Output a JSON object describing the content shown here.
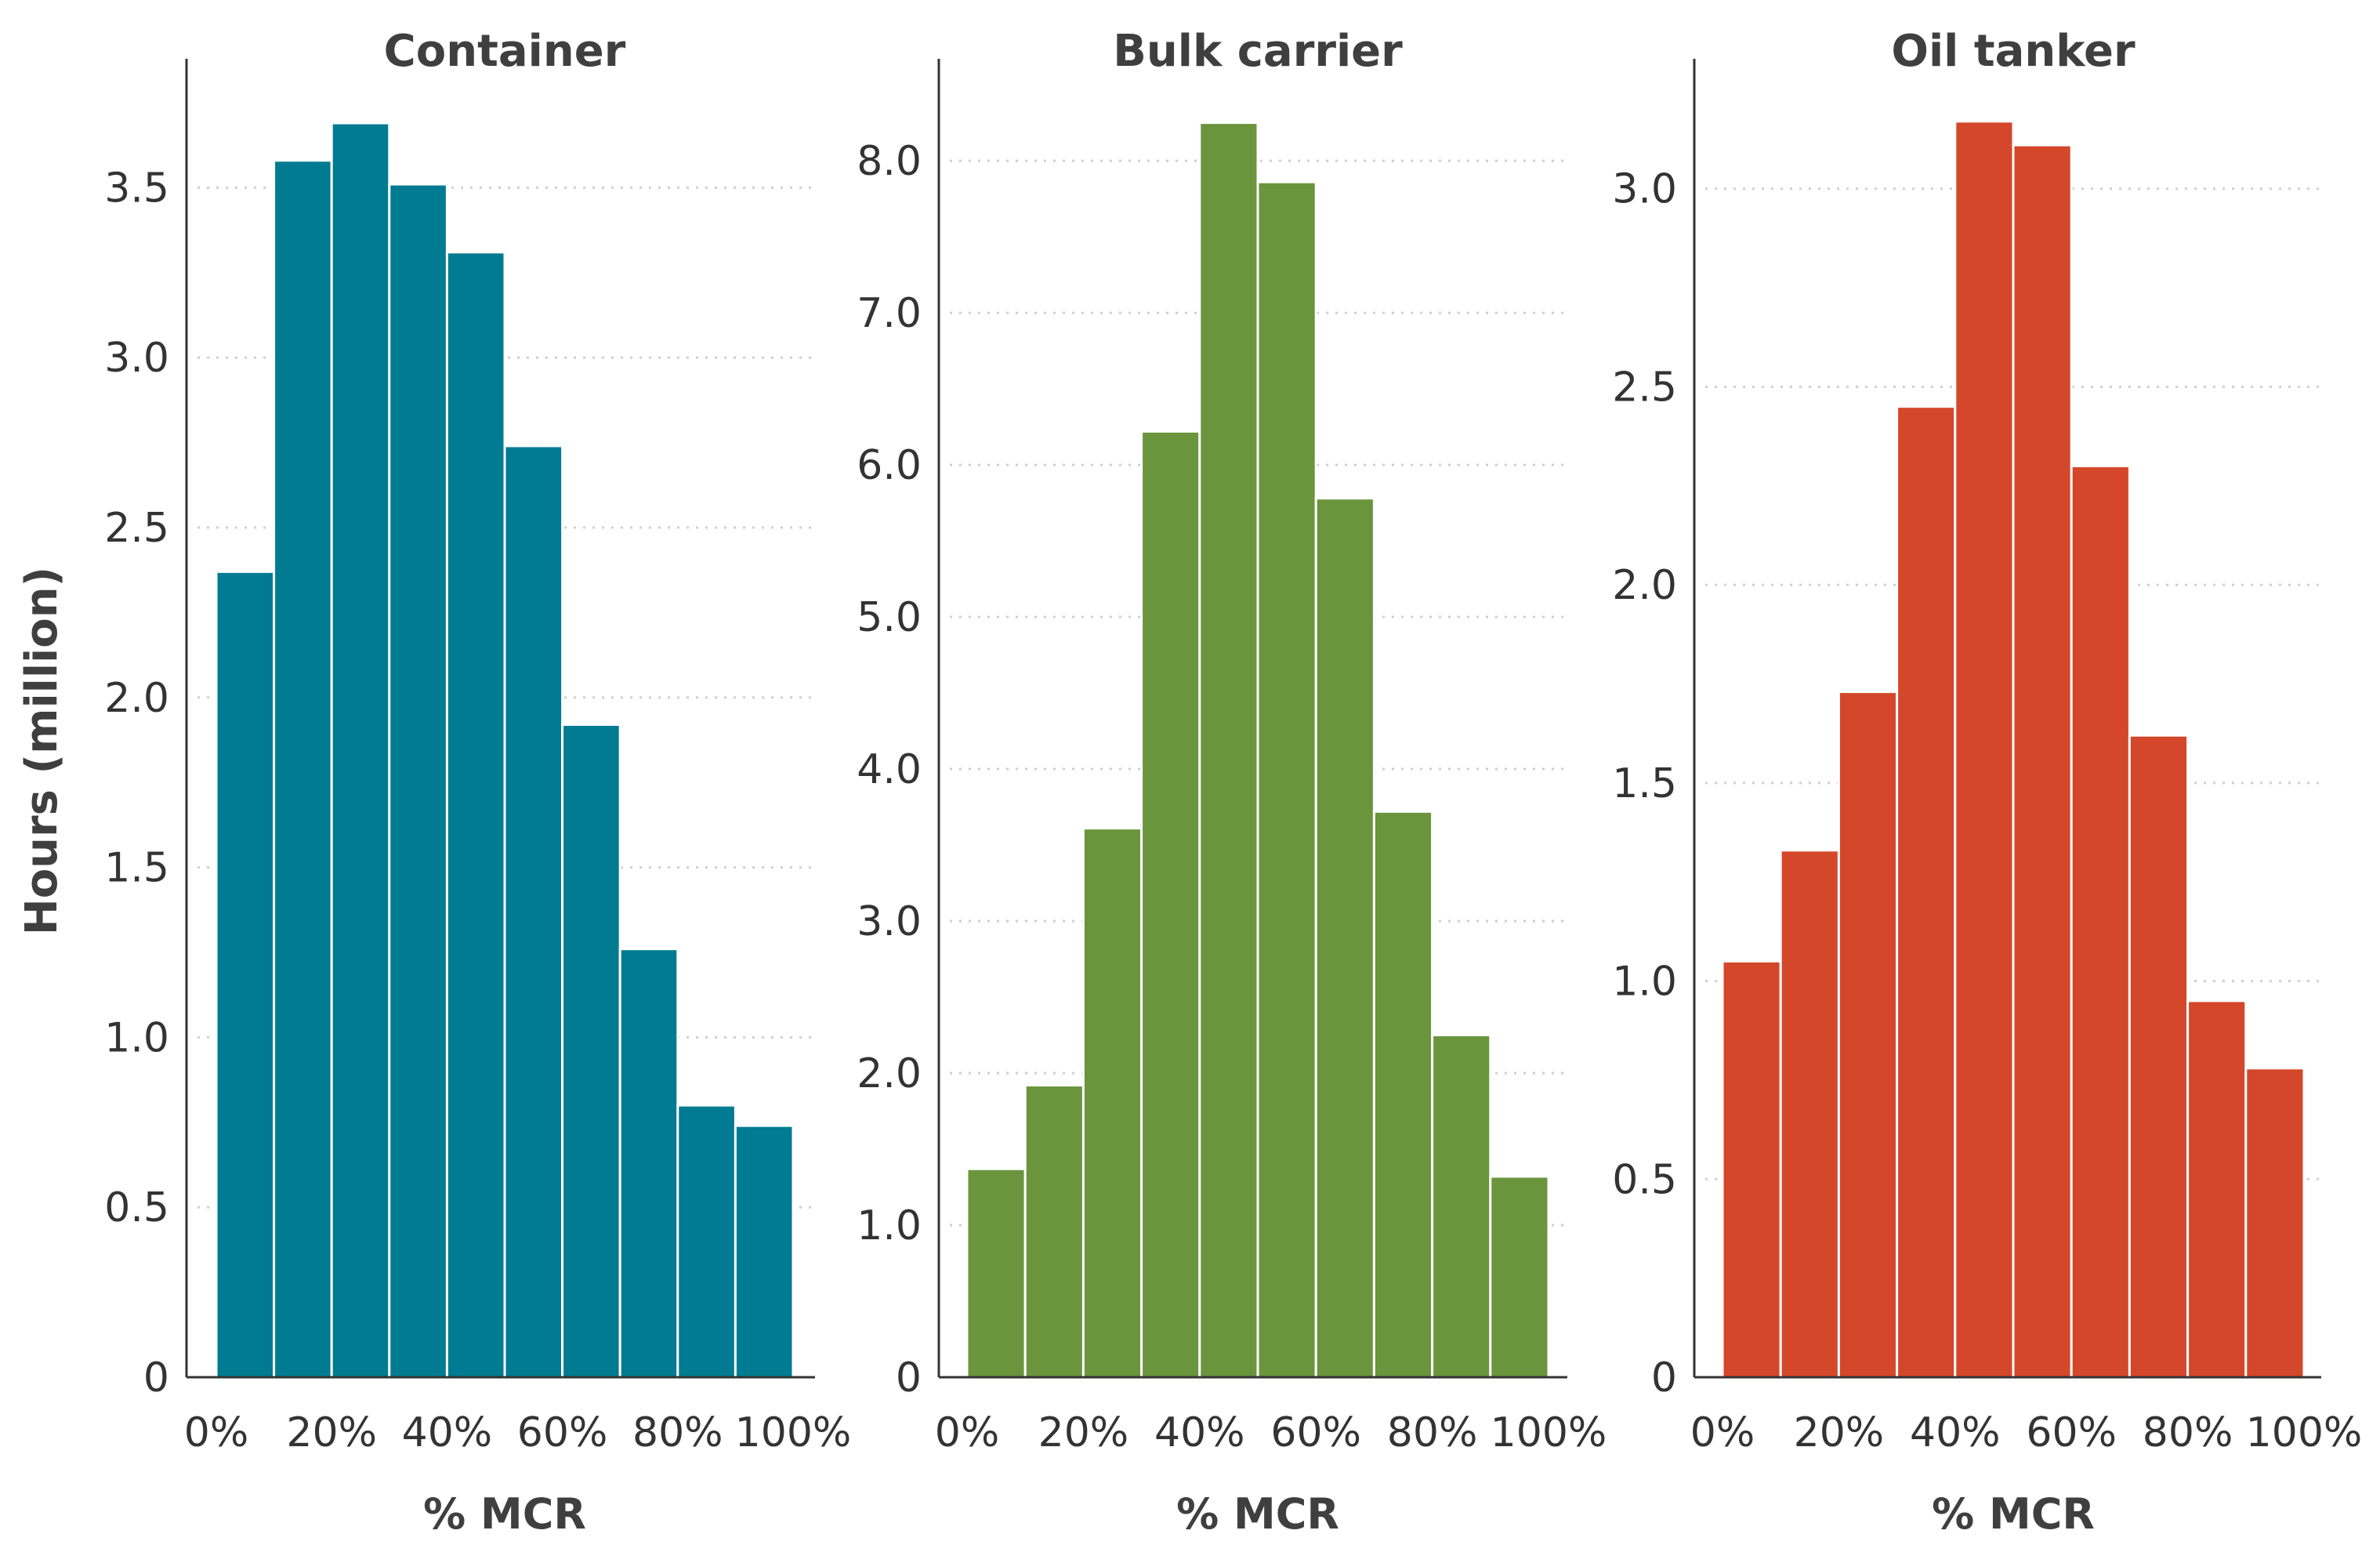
{
  "chart_data": [
    {
      "type": "bar",
      "title": "Container",
      "xlabel": "% MCR",
      "ylabel": "Hours (million)",
      "categories": [
        "0-10%",
        "10-20%",
        "20-30%",
        "30-40%",
        "40-50%",
        "50-60%",
        "60-70%",
        "70-80%",
        "80-90%",
        "90-100%"
      ],
      "values": [
        2.37,
        3.58,
        3.69,
        3.51,
        3.31,
        2.74,
        1.92,
        1.26,
        0.8,
        0.74
      ],
      "xticks": [
        "0%",
        "20%",
        "40%",
        "60%",
        "80%",
        "100%"
      ],
      "yticks": [
        0,
        0.5,
        1.0,
        1.5,
        2.0,
        2.5,
        3.0,
        3.5
      ],
      "ytick_labels": [
        "0",
        "0.5",
        "1.0",
        "1.5",
        "2.0",
        "2.5",
        "3.0",
        "3.5"
      ],
      "ylim": [
        0,
        3.87
      ],
      "color": "#007b91",
      "grid": true
    },
    {
      "type": "bar",
      "title": "Bulk carrier",
      "xlabel": "% MCR",
      "ylabel": "",
      "categories": [
        "0-10%",
        "10-20%",
        "20-30%",
        "30-40%",
        "40-50%",
        "50-60%",
        "60-70%",
        "70-80%",
        "80-90%",
        "90-100%"
      ],
      "values": [
        1.37,
        1.92,
        3.61,
        6.22,
        8.25,
        7.86,
        5.78,
        3.72,
        2.25,
        1.32
      ],
      "xticks": [
        "0%",
        "20%",
        "40%",
        "60%",
        "80%",
        "100%"
      ],
      "yticks": [
        0,
        1.0,
        2.0,
        3.0,
        4.0,
        5.0,
        6.0,
        7.0,
        8.0
      ],
      "ytick_labels": [
        "0",
        "1.0",
        "2.0",
        "3.0",
        "4.0",
        "5.0",
        "6.0",
        "7.0",
        "8.0"
      ],
      "ylim": [
        0,
        8.65
      ],
      "color": "#6a953c",
      "grid": true
    },
    {
      "type": "bar",
      "title": "Oil tanker",
      "xlabel": "% MCR",
      "ylabel": "",
      "categories": [
        "0-10%",
        "10-20%",
        "20-30%",
        "30-40%",
        "40-50%",
        "50-60%",
        "60-70%",
        "70-80%",
        "80-90%",
        "90-100%"
      ],
      "values": [
        1.05,
        1.33,
        1.73,
        2.45,
        3.17,
        3.11,
        2.3,
        1.62,
        0.95,
        0.78
      ],
      "xticks": [
        "0%",
        "20%",
        "40%",
        "60%",
        "80%",
        "100%"
      ],
      "yticks": [
        0,
        0.5,
        1.0,
        1.5,
        2.0,
        2.5,
        3.0
      ],
      "ytick_labels": [
        "0",
        "0.5",
        "1.0",
        "1.5",
        "2.0",
        "2.5",
        "3.0"
      ],
      "ylim": [
        0,
        3.32
      ],
      "color": "#d4472a",
      "grid": true
    }
  ]
}
